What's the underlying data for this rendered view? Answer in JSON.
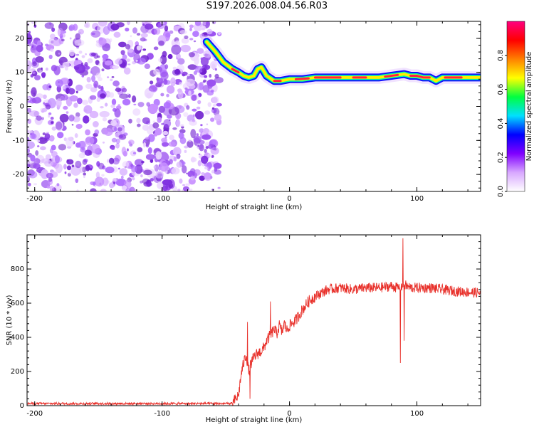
{
  "title": "S197.2026.008.04.56.R03",
  "chart_data": [
    {
      "type": "heatmap",
      "name": "spectrogram",
      "xlabel": "Height of straight line (km)",
      "ylabel": "Frequency (Hz)",
      "xlim": [
        -206,
        150
      ],
      "ylim": [
        -25,
        25
      ],
      "xticks": [
        -200,
        -100,
        0,
        100
      ],
      "yticks": [
        -20,
        -10,
        0,
        10,
        20
      ],
      "noise_region_x": [
        -206,
        -55
      ],
      "ridge": {
        "x": [
          -65,
          -58,
          -52,
          -45,
          -40,
          -36,
          -32,
          -28,
          -25,
          -22,
          -18,
          -12,
          -7,
          0,
          10,
          20,
          30,
          40,
          50,
          60,
          70,
          80,
          90,
          95,
          100,
          105,
          110,
          115,
          120,
          130,
          140,
          150
        ],
        "frequency": [
          19,
          16,
          13,
          11,
          10,
          9,
          8.5,
          9,
          11,
          11.5,
          9,
          7.5,
          7.5,
          8,
          8,
          8.5,
          8.5,
          8.5,
          8.5,
          8.5,
          8.5,
          9,
          9.5,
          9,
          9,
          8.5,
          8.5,
          7.5,
          8.5,
          8.5,
          8.5,
          8.5
        ]
      },
      "colorbar": {
        "label": "Normalized spectral amplitude",
        "ticks": [
          0.0,
          0.2,
          0.4,
          0.6,
          0.8
        ],
        "tick_labels": [
          "0.0",
          "0.2",
          "0.4",
          "0.6",
          "0.8"
        ],
        "range": [
          0,
          1
        ],
        "colors": [
          "#ffffff",
          "#d8a8ff",
          "#8000ff",
          "#0000ff",
          "#00e0ff",
          "#00ff40",
          "#ffff00",
          "#ff8000",
          "#ff0000",
          "#ff0080"
        ]
      }
    },
    {
      "type": "line",
      "name": "snr",
      "xlabel": "Height of straight line (km)",
      "ylabel": "SNR (10 * v/v)",
      "xlim": [
        -206,
        150
      ],
      "ylim": [
        0,
        1000
      ],
      "xticks": [
        -200,
        -100,
        0,
        100
      ],
      "yticks": [
        0,
        200,
        400,
        600,
        800
      ],
      "color": "#e8302a",
      "series": {
        "x": [
          -206,
          -150,
          -100,
          -60,
          -45,
          -40,
          -38,
          -36,
          -34,
          -32,
          -30,
          -28,
          -26,
          -24,
          -22,
          -20,
          -18,
          -16,
          -14,
          -12,
          -10,
          -8,
          -6,
          -4,
          -2,
          0,
          5,
          10,
          15,
          20,
          25,
          30,
          40,
          50,
          60,
          70,
          80,
          85,
          88,
          90,
          92,
          95,
          100,
          110,
          120,
          130,
          140,
          150
        ],
        "y": [
          12,
          12,
          12,
          12,
          12,
          60,
          180,
          250,
          300,
          200,
          250,
          280,
          300,
          310,
          320,
          340,
          380,
          400,
          420,
          450,
          420,
          470,
          430,
          480,
          440,
          470,
          500,
          560,
          610,
          640,
          660,
          680,
          690,
          680,
          690,
          690,
          700,
          690,
          700,
          710,
          700,
          690,
          690,
          690,
          680,
          670,
          665,
          660
        ],
        "spikes": [
          {
            "x": -33,
            "y": 490
          },
          {
            "x": -31,
            "y": 40
          },
          {
            "x": -15,
            "y": 610
          },
          {
            "x": 87,
            "y": 250
          },
          {
            "x": 89,
            "y": 980
          },
          {
            "x": 90,
            "y": 380
          }
        ]
      }
    }
  ]
}
